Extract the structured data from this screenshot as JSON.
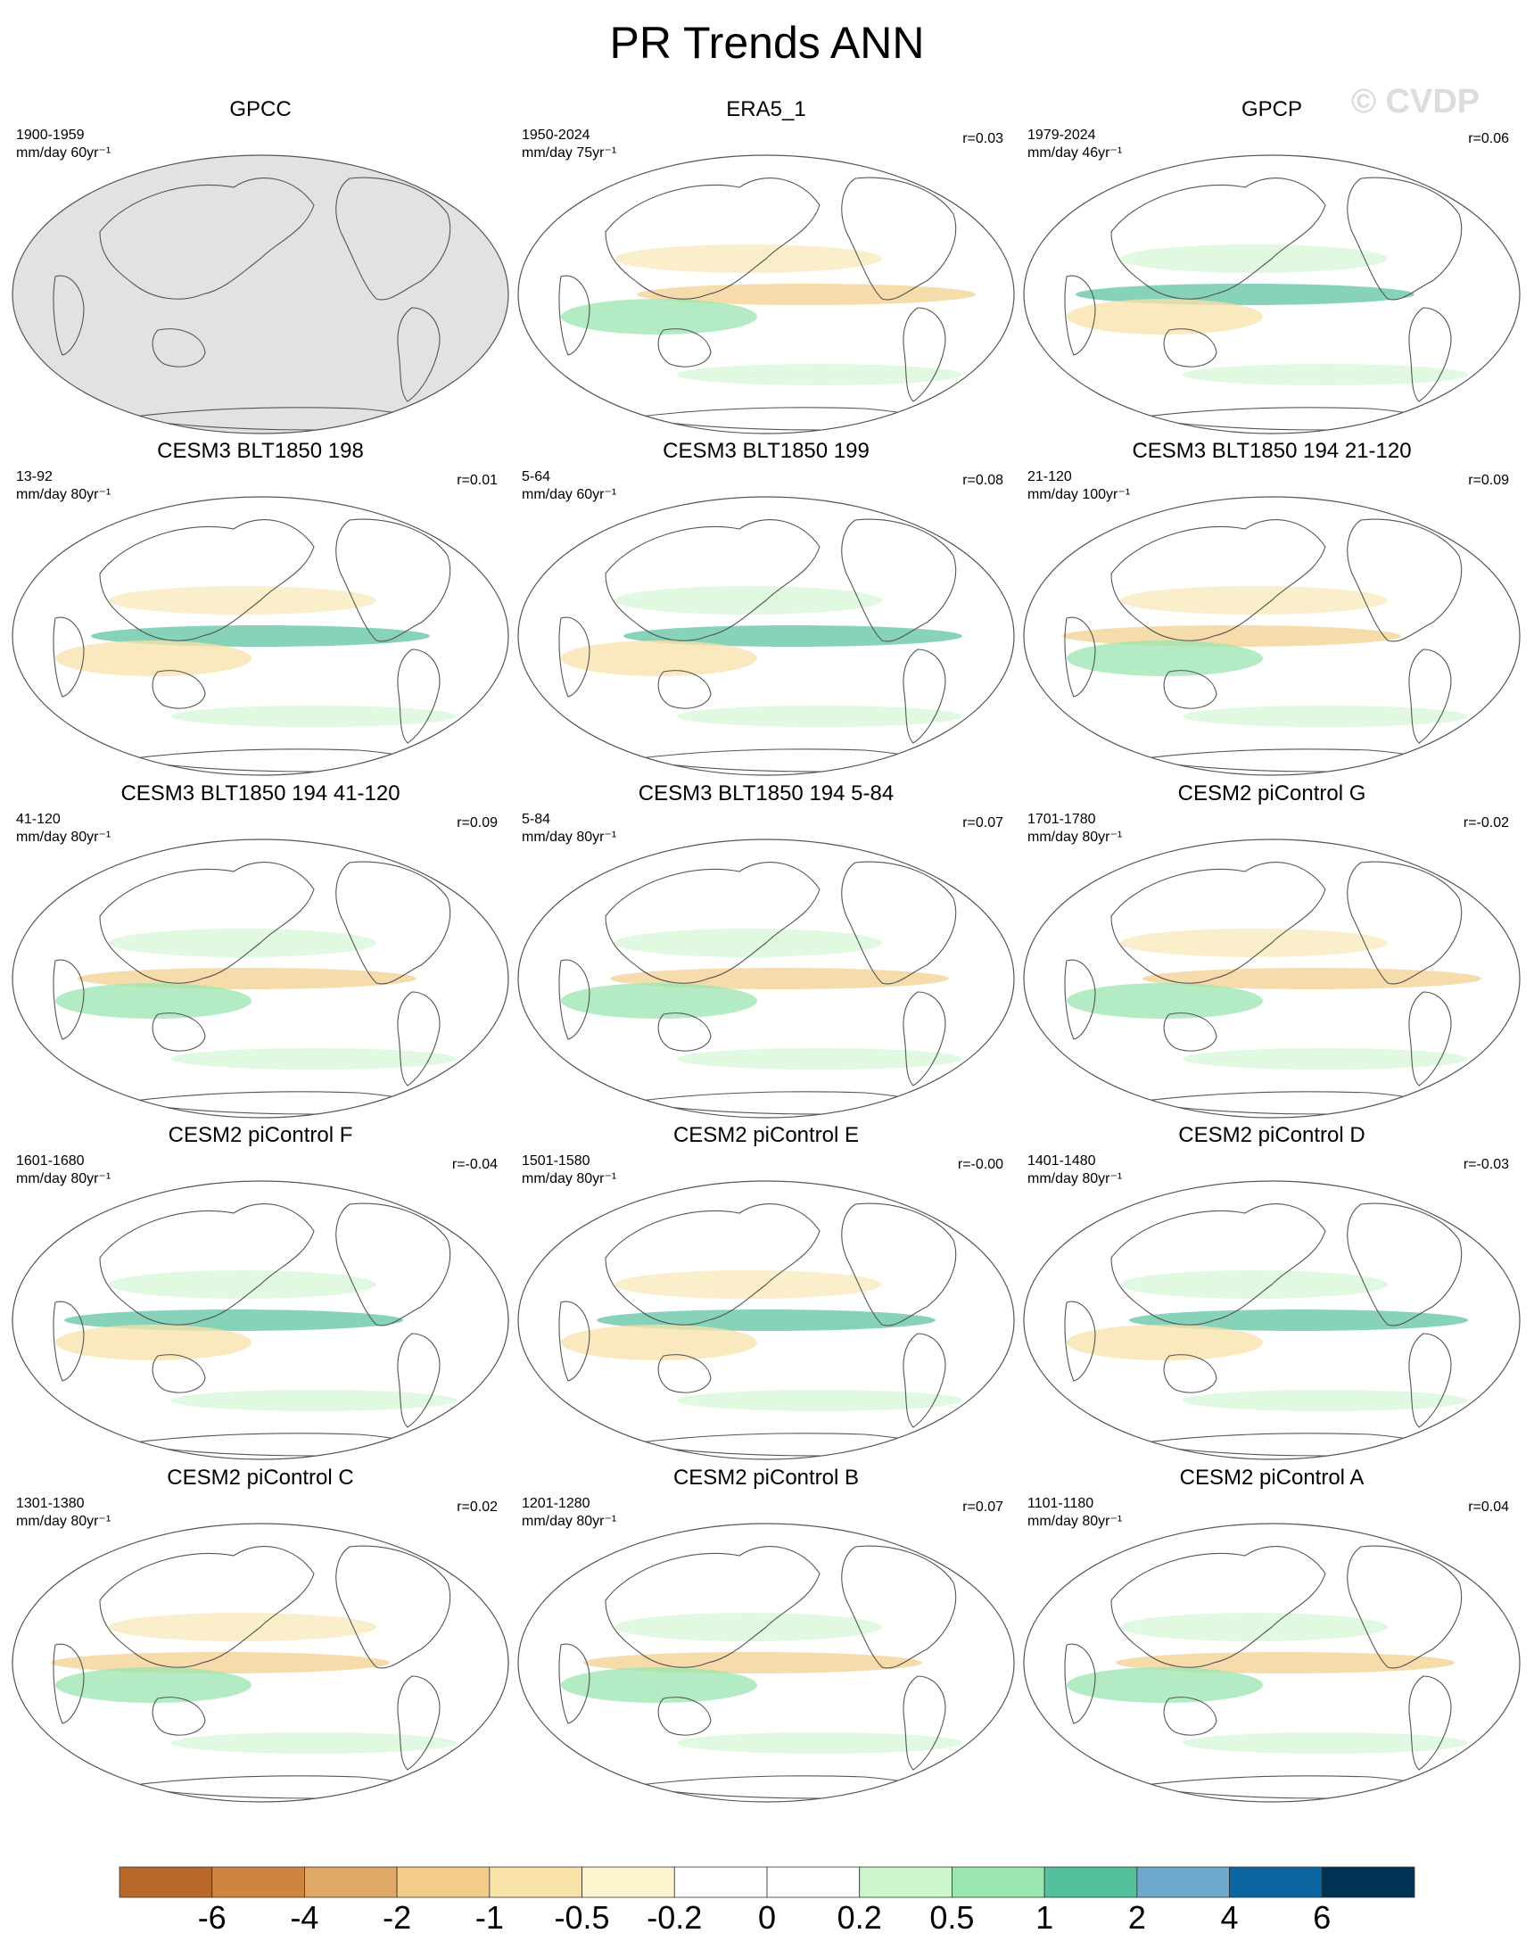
{
  "figure": {
    "title": "PR Trends ANN",
    "watermark": "© CVDP"
  },
  "panels": [
    {
      "title": "GPCC",
      "years": "1900-1959",
      "units": "mm/day 60yr⁻¹",
      "corr": "",
      "gray_land_mask": true
    },
    {
      "title": "ERA5_1",
      "years": "1950-2024",
      "units": "mm/day 75yr⁻¹",
      "corr": "r=0.03"
    },
    {
      "title": "GPCP",
      "years": "1979-2024",
      "units": "mm/day 46yr⁻¹",
      "corr": "r=0.06"
    },
    {
      "title": "CESM3 BLT1850 198",
      "years": "13-92",
      "units": "mm/day 80yr⁻¹",
      "corr": "r=0.01"
    },
    {
      "title": "CESM3 BLT1850 199",
      "years": "5-64",
      "units": "mm/day 60yr⁻¹",
      "corr": "r=0.08"
    },
    {
      "title": "CESM3 BLT1850 194 21-120",
      "years": "21-120",
      "units": "mm/day 100yr⁻¹",
      "corr": "r=0.09"
    },
    {
      "title": "CESM3 BLT1850 194 41-120",
      "years": "41-120",
      "units": "mm/day 80yr⁻¹",
      "corr": "r=0.09"
    },
    {
      "title": "CESM3 BLT1850 194 5-84",
      "years": "5-84",
      "units": "mm/day 80yr⁻¹",
      "corr": "r=0.07"
    },
    {
      "title": "CESM2 piControl G",
      "years": "1701-1780",
      "units": "mm/day 80yr⁻¹",
      "corr": "r=-0.02"
    },
    {
      "title": "CESM2 piControl F",
      "years": "1601-1680",
      "units": "mm/day 80yr⁻¹",
      "corr": "r=-0.04"
    },
    {
      "title": "CESM2 piControl E",
      "years": "1501-1580",
      "units": "mm/day 80yr⁻¹",
      "corr": "r=-0.00"
    },
    {
      "title": "CESM2 piControl D",
      "years": "1401-1480",
      "units": "mm/day 80yr⁻¹",
      "corr": "r=-0.03"
    },
    {
      "title": "CESM2 piControl C",
      "years": "1301-1380",
      "units": "mm/day 80yr⁻¹",
      "corr": "r=0.02"
    },
    {
      "title": "CESM2 piControl B",
      "years": "1201-1280",
      "units": "mm/day 80yr⁻¹",
      "corr": "r=0.07"
    },
    {
      "title": "CESM2 piControl A",
      "years": "1101-1180",
      "units": "mm/day 80yr⁻¹",
      "corr": "r=0.04"
    }
  ],
  "chart_data": {
    "type": "heatmap",
    "title": "PR Trends ANN",
    "projection": "Robinson, Pacific-centered global maps",
    "colorbar": {
      "levels": [
        -6,
        -4,
        -2,
        -1,
        -0.5,
        -0.2,
        0,
        0.2,
        0.5,
        1,
        2,
        4,
        6
      ],
      "labels": [
        "-6",
        "-4",
        "-2",
        "-1",
        "-0.5",
        "-0.2",
        "0",
        "0.2",
        "0.5",
        "1",
        "2",
        "4",
        "6"
      ],
      "colors": [
        "#b8692a",
        "#cd853f",
        "#e0a865",
        "#f2cc88",
        "#f8e2a8",
        "#fdf3cc",
        "#ffffff",
        "#ffffff",
        "#ccf5cc",
        "#99e6b0",
        "#52c19c",
        "#6ea8cc",
        "#0a65a0",
        "#003355"
      ],
      "units": "mm/day per record length"
    }
  },
  "colors": {
    "land_mask": "#e2e2e2",
    "coast": "#555555",
    "frame": "#555555"
  }
}
